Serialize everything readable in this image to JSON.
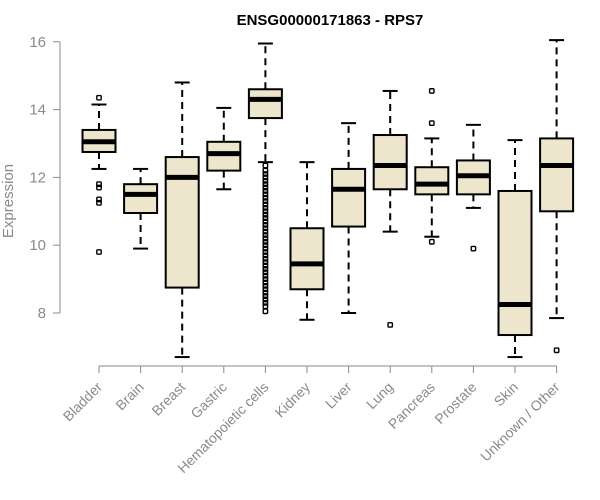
{
  "chart_data": {
    "type": "boxplot",
    "title": "ENSG00000171863 - RPS7",
    "xlabel": "",
    "ylabel": "Expression",
    "ylim": [
      6.7,
      16.05
    ],
    "yticks": [
      "8",
      "10",
      "12",
      "14",
      "16"
    ],
    "box_fill": "#ede6cc",
    "categories": [
      "Bladder",
      "Brain",
      "Breast",
      "Gastric",
      "Hematopoietic cells",
      "Kidney",
      "Liver",
      "Lung",
      "Pancreas",
      "Prostate",
      "Skin",
      "Unknown / Other"
    ],
    "boxes": [
      {
        "name": "Bladder",
        "min": 12.25,
        "q1": 12.75,
        "median": 13.05,
        "q3": 13.4,
        "max": 14.15,
        "outliers": [
          14.35,
          11.8,
          11.7,
          11.35,
          11.25,
          9.8
        ]
      },
      {
        "name": "Brain",
        "min": 9.9,
        "q1": 10.95,
        "median": 11.5,
        "q3": 11.8,
        "max": 12.25,
        "outliers": []
      },
      {
        "name": "Breast",
        "min": 6.7,
        "q1": 8.75,
        "median": 12.0,
        "q3": 12.6,
        "max": 14.8,
        "outliers": []
      },
      {
        "name": "Gastric",
        "min": 11.65,
        "q1": 12.2,
        "median": 12.7,
        "q3": 13.05,
        "max": 14.05,
        "outliers": []
      },
      {
        "name": "Hematopoietic cells",
        "min": 12.45,
        "q1": 13.75,
        "median": 14.3,
        "q3": 14.6,
        "max": 15.95,
        "outliers": [
          12.35,
          12.2,
          12.1,
          12.0,
          11.9,
          11.8,
          11.7,
          11.6,
          11.5,
          11.4,
          11.3,
          11.2,
          11.1,
          11.0,
          10.9,
          10.8,
          10.7,
          10.6,
          10.5,
          10.4,
          10.3,
          10.2,
          10.1,
          10.0,
          9.9,
          9.8,
          9.7,
          9.6,
          9.5,
          9.4,
          9.3,
          9.2,
          9.1,
          9.0,
          8.9,
          8.8,
          8.7,
          8.6,
          8.5,
          8.4,
          8.3,
          8.2,
          8.05
        ]
      },
      {
        "name": "Kidney",
        "min": 7.8,
        "q1": 8.7,
        "median": 9.45,
        "q3": 10.5,
        "max": 12.45,
        "outliers": []
      },
      {
        "name": "Liver",
        "min": 8.0,
        "q1": 10.55,
        "median": 11.65,
        "q3": 12.25,
        "max": 13.6,
        "outliers": []
      },
      {
        "name": "Lung",
        "min": 10.4,
        "q1": 11.65,
        "median": 12.35,
        "q3": 13.25,
        "max": 14.55,
        "outliers": [
          7.65
        ]
      },
      {
        "name": "Pancreas",
        "min": 10.25,
        "q1": 11.5,
        "median": 11.8,
        "q3": 12.3,
        "max": 13.15,
        "outliers": [
          14.55,
          13.6,
          10.1
        ]
      },
      {
        "name": "Prostate",
        "min": 11.1,
        "q1": 11.5,
        "median": 12.05,
        "q3": 12.5,
        "max": 13.55,
        "outliers": [
          9.9
        ]
      },
      {
        "name": "Skin",
        "min": 6.7,
        "q1": 7.35,
        "median": 8.25,
        "q3": 11.6,
        "max": 13.1,
        "outliers": []
      },
      {
        "name": "Unknown / Other",
        "min": 7.85,
        "q1": 11.0,
        "median": 12.35,
        "q3": 13.15,
        "max": 16.05,
        "outliers": [
          6.9
        ]
      }
    ]
  }
}
